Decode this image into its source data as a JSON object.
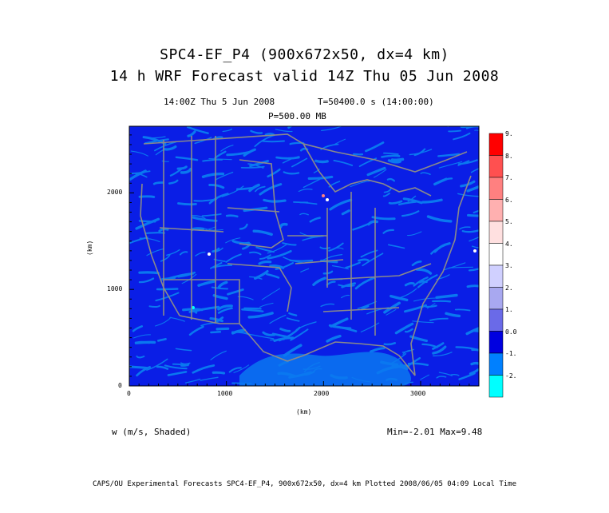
{
  "title": {
    "line1": "SPC4-EF_P4 (900x672x50, dx=4 km)",
    "line2": "14 h WRF Forecast valid 14Z Thu 05 Jun 2008"
  },
  "subtitle": {
    "time": "14:00Z Thu  5 Jun 2008",
    "seconds": "T=50400.0 s (14:00:00)",
    "level": "P=500.00 MB"
  },
  "axes": {
    "x_label": "(km)",
    "y_label": "(km)",
    "x_ticks": [
      "0",
      "1000",
      "2000",
      "3000"
    ],
    "y_ticks": [
      "0",
      "1000",
      "2000"
    ]
  },
  "colorbar": {
    "labels": [
      "9.",
      "8.",
      "7.",
      "6.",
      "5.",
      "4.",
      "3.",
      "2.",
      "1.",
      "0.0",
      "-1.",
      "-2."
    ],
    "colors": [
      "#ff0000",
      "#ff5050",
      "#ff8080",
      "#ffb0b0",
      "#ffe0e0",
      "#ffffff",
      "#d0d0ff",
      "#a8a8f0",
      "#6a6ae8",
      "#0000e0",
      "#0080ff",
      "#00ffff"
    ]
  },
  "field": {
    "variable": "w (m/s, Shaded)",
    "stats": "Min=-2.01  Max=9.48"
  },
  "footer": "CAPS/OU Experimental Forecasts  SPC4-EF_P4, 900x672x50, dx=4 km  Plotted 2008/06/05 04:09 Local Time",
  "colors": {
    "field_dark": "#0a1ee6",
    "field_light": "#0a78f0",
    "borders": "#8a8a8a"
  }
}
